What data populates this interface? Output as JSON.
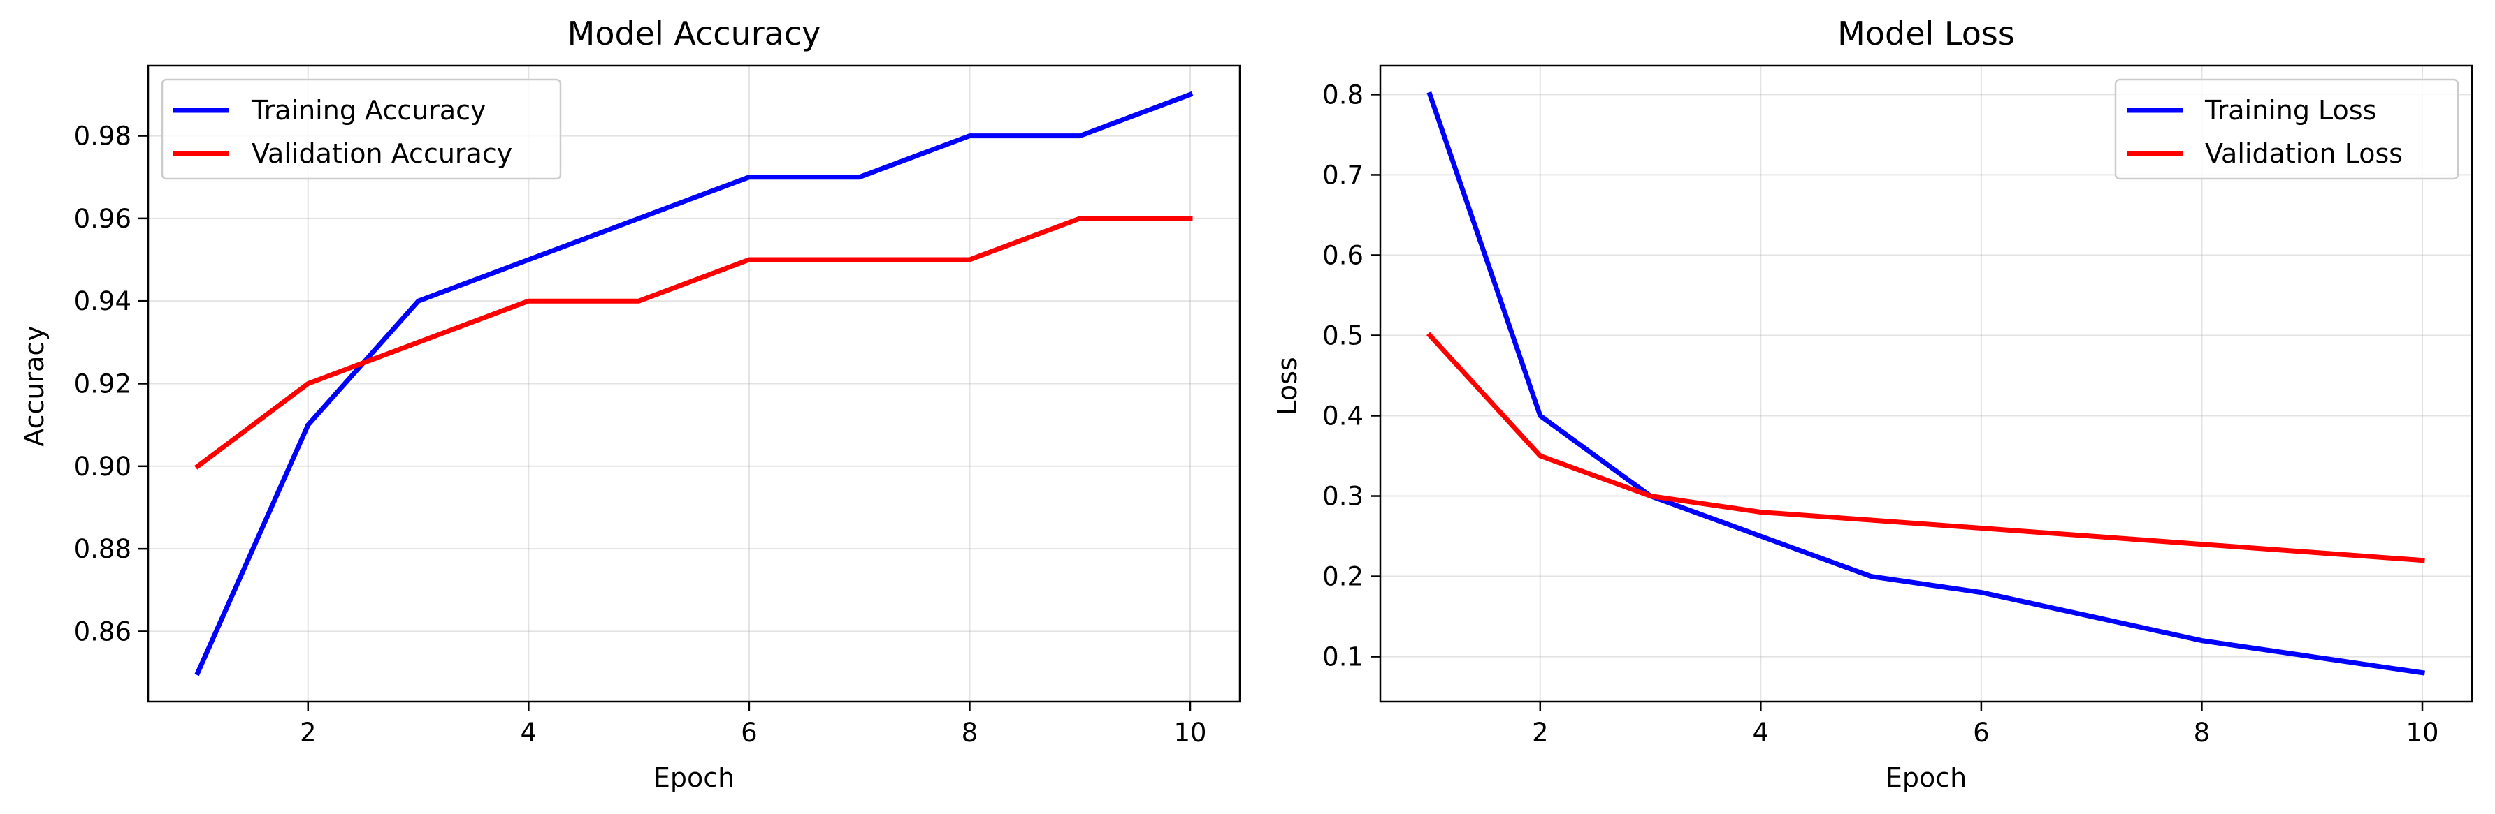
{
  "chart_data": [
    {
      "type": "line",
      "title": "Model Accuracy",
      "xlabel": "Epoch",
      "ylabel": "Accuracy",
      "x": [
        1,
        2,
        3,
        4,
        5,
        6,
        7,
        8,
        9,
        10
      ],
      "series": [
        {
          "name": "Training Accuracy",
          "color": "#0000ff",
          "values": [
            0.85,
            0.91,
            0.94,
            0.95,
            0.96,
            0.97,
            0.97,
            0.98,
            0.98,
            0.99
          ]
        },
        {
          "name": "Validation Accuracy",
          "color": "#ff0000",
          "values": [
            0.9,
            0.92,
            0.93,
            0.94,
            0.94,
            0.95,
            0.95,
            0.95,
            0.96,
            0.96
          ]
        }
      ],
      "xlim": [
        0.55,
        10.45
      ],
      "ylim": [
        0.843,
        0.997
      ],
      "xticks": [
        2,
        4,
        6,
        8,
        10
      ],
      "xtick_labels": [
        "2",
        "4",
        "6",
        "8",
        "10"
      ],
      "yticks": [
        0.86,
        0.88,
        0.9,
        0.92,
        0.94,
        0.96,
        0.98
      ],
      "ytick_labels": [
        "0.86",
        "0.88",
        "0.90",
        "0.92",
        "0.94",
        "0.96",
        "0.98"
      ],
      "grid": true,
      "legend": "top-left"
    },
    {
      "type": "line",
      "title": "Model Loss",
      "xlabel": "Epoch",
      "ylabel": "Loss",
      "x": [
        1,
        2,
        3,
        4,
        5,
        6,
        7,
        8,
        9,
        10
      ],
      "series": [
        {
          "name": "Training Loss",
          "color": "#0000ff",
          "values": [
            0.8,
            0.4,
            0.3,
            0.25,
            0.2,
            0.18,
            0.15,
            0.12,
            0.1,
            0.08
          ]
        },
        {
          "name": "Validation Loss",
          "color": "#ff0000",
          "values": [
            0.5,
            0.35,
            0.3,
            0.28,
            0.27,
            0.26,
            0.25,
            0.24,
            0.23,
            0.22
          ]
        }
      ],
      "xlim": [
        0.55,
        10.45
      ],
      "ylim": [
        0.044,
        0.836
      ],
      "xticks": [
        2,
        4,
        6,
        8,
        10
      ],
      "xtick_labels": [
        "2",
        "4",
        "6",
        "8",
        "10"
      ],
      "yticks": [
        0.1,
        0.2,
        0.3,
        0.4,
        0.5,
        0.6,
        0.7,
        0.8
      ],
      "ytick_labels": [
        "0.1",
        "0.2",
        "0.3",
        "0.4",
        "0.5",
        "0.6",
        "0.7",
        "0.8"
      ],
      "grid": true,
      "legend": "top-right"
    }
  ]
}
